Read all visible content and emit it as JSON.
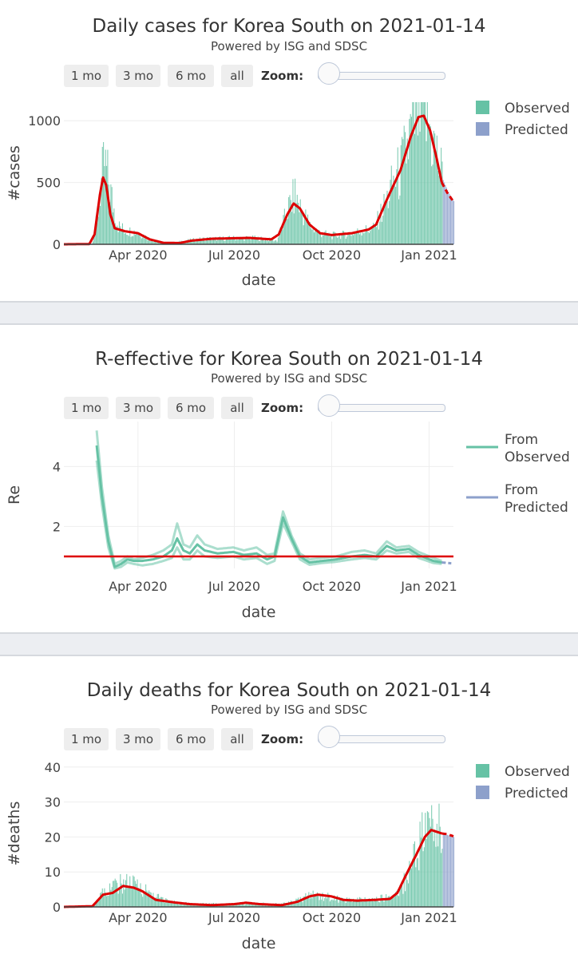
{
  "range_buttons": [
    "1 mo",
    "3 mo",
    "6 mo",
    "all"
  ],
  "zoom_label": "Zoom:",
  "colors": {
    "observed": "#66c2a5",
    "predicted": "#8da0cb",
    "fit": "#dd0000",
    "grid": "#eeeeee"
  },
  "charts": [
    {
      "title": "Daily cases for Korea South on 2021-01-14",
      "subtitle": "Powered by ISG and SDSC",
      "ylabel": "#cases",
      "xlabel": "date",
      "legend": [
        "Observed",
        "Predicted"
      ]
    },
    {
      "title": "R-effective for Korea South on 2021-01-14",
      "subtitle": "Powered by ISG and SDSC",
      "ylabel": "Re",
      "xlabel": "date",
      "legend": [
        "From\nObserved",
        "From\nPredicted"
      ]
    },
    {
      "title": "Daily deaths for Korea South on 2021-01-14",
      "subtitle": "Powered by ISG and SDSC",
      "ylabel": "#deaths",
      "xlabel": "date",
      "legend": [
        "Observed",
        "Predicted"
      ]
    }
  ],
  "chart_data": [
    {
      "type": "bar",
      "title": "Daily cases for Korea South on 2021-01-14",
      "x_range": [
        "2020-01-22",
        "2021-01-24"
      ],
      "ylim": [
        0,
        1150
      ],
      "yticks": [
        0,
        500,
        1000
      ],
      "xticks": [
        {
          "date": "2020-04-01",
          "label": "Apr 2020"
        },
        {
          "date": "2020-07-01",
          "label": "Jul 2020"
        },
        {
          "date": "2020-10-01",
          "label": "Oct 2020"
        },
        {
          "date": "2021-01-01",
          "label": "Jan 2021"
        }
      ],
      "observed_end": "2021-01-13",
      "prediction_end": "2021-01-24",
      "observed_keypoints": [
        [
          "2020-01-22",
          0
        ],
        [
          "2020-02-17",
          1
        ],
        [
          "2020-02-22",
          200
        ],
        [
          "2020-02-26",
          500
        ],
        [
          "2020-02-29",
          650
        ],
        [
          "2020-03-03",
          550
        ],
        [
          "2020-03-08",
          320
        ],
        [
          "2020-03-13",
          150
        ],
        [
          "2020-03-20",
          110
        ],
        [
          "2020-04-01",
          100
        ],
        [
          "2020-04-10",
          50
        ],
        [
          "2020-04-20",
          15
        ],
        [
          "2020-05-05",
          8
        ],
        [
          "2020-05-12",
          25
        ],
        [
          "2020-05-28",
          40
        ],
        [
          "2020-06-05",
          45
        ],
        [
          "2020-06-15",
          45
        ],
        [
          "2020-07-01",
          50
        ],
        [
          "2020-07-20",
          50
        ],
        [
          "2020-08-01",
          40
        ],
        [
          "2020-08-10",
          30
        ],
        [
          "2020-08-15",
          150
        ],
        [
          "2020-08-20",
          280
        ],
        [
          "2020-08-27",
          400
        ],
        [
          "2020-09-01",
          300
        ],
        [
          "2020-09-10",
          150
        ],
        [
          "2020-09-20",
          90
        ],
        [
          "2020-10-01",
          70
        ],
        [
          "2020-10-15",
          80
        ],
        [
          "2020-10-30",
          110
        ],
        [
          "2020-11-10",
          130
        ],
        [
          "2020-11-20",
          320
        ],
        [
          "2020-11-28",
          500
        ],
        [
          "2020-12-05",
          600
        ],
        [
          "2020-12-13",
          850
        ],
        [
          "2020-12-20",
          1050
        ],
        [
          "2020-12-25",
          1100
        ],
        [
          "2021-01-01",
          950
        ],
        [
          "2021-01-08",
          700
        ],
        [
          "2021-01-13",
          550
        ]
      ],
      "predicted_keypoints": [
        [
          "2021-01-14",
          520
        ],
        [
          "2021-01-19",
          420
        ],
        [
          "2021-01-24",
          350
        ]
      ],
      "fit_keypoints": [
        [
          "2020-01-22",
          0
        ],
        [
          "2020-02-15",
          2
        ],
        [
          "2020-02-20",
          80
        ],
        [
          "2020-02-25",
          400
        ],
        [
          "2020-02-28",
          540
        ],
        [
          "2020-03-02",
          480
        ],
        [
          "2020-03-06",
          240
        ],
        [
          "2020-03-10",
          130
        ],
        [
          "2020-03-20",
          105
        ],
        [
          "2020-04-01",
          90
        ],
        [
          "2020-04-12",
          40
        ],
        [
          "2020-04-25",
          12
        ],
        [
          "2020-05-10",
          10
        ],
        [
          "2020-05-22",
          30
        ],
        [
          "2020-06-10",
          45
        ],
        [
          "2020-07-15",
          52
        ],
        [
          "2020-08-05",
          40
        ],
        [
          "2020-08-12",
          80
        ],
        [
          "2020-08-20",
          240
        ],
        [
          "2020-08-26",
          330
        ],
        [
          "2020-09-01",
          290
        ],
        [
          "2020-09-10",
          160
        ],
        [
          "2020-09-20",
          90
        ],
        [
          "2020-10-01",
          75
        ],
        [
          "2020-10-20",
          90
        ],
        [
          "2020-11-05",
          120
        ],
        [
          "2020-11-12",
          160
        ],
        [
          "2020-11-22",
          360
        ],
        [
          "2020-12-05",
          600
        ],
        [
          "2020-12-15",
          880
        ],
        [
          "2020-12-22",
          1030
        ],
        [
          "2020-12-27",
          1040
        ],
        [
          "2021-01-02",
          920
        ],
        [
          "2021-01-08",
          700
        ],
        [
          "2021-01-13",
          500
        ]
      ],
      "fit_predicted_keypoints": [
        [
          "2021-01-13",
          500
        ],
        [
          "2021-01-18",
          420
        ],
        [
          "2021-01-24",
          345
        ]
      ]
    },
    {
      "type": "line",
      "title": "R-effective for Korea South on 2021-01-14",
      "x_range": [
        "2020-01-22",
        "2021-01-24"
      ],
      "ylim": [
        0.6,
        5.5
      ],
      "yticks": [
        2,
        4
      ],
      "xticks": [
        {
          "date": "2020-04-01",
          "label": "Apr 2020"
        },
        {
          "date": "2020-07-01",
          "label": "Jul 2020"
        },
        {
          "date": "2020-10-01",
          "label": "Oct 2020"
        },
        {
          "date": "2021-01-01",
          "label": "Jan 2021"
        }
      ],
      "reference_line": 1,
      "observed_median": [
        [
          "2020-02-22",
          4.7
        ],
        [
          "2020-02-27",
          3.0
        ],
        [
          "2020-03-04",
          1.5
        ],
        [
          "2020-03-10",
          0.65
        ],
        [
          "2020-03-16",
          0.75
        ],
        [
          "2020-03-22",
          0.9
        ],
        [
          "2020-03-28",
          0.85
        ],
        [
          "2020-04-05",
          0.85
        ],
        [
          "2020-04-15",
          0.9
        ],
        [
          "2020-04-25",
          1.0
        ],
        [
          "2020-05-03",
          1.2
        ],
        [
          "2020-05-08",
          1.6
        ],
        [
          "2020-05-14",
          1.2
        ],
        [
          "2020-05-20",
          1.1
        ],
        [
          "2020-05-27",
          1.4
        ],
        [
          "2020-06-03",
          1.2
        ],
        [
          "2020-06-15",
          1.1
        ],
        [
          "2020-06-30",
          1.15
        ],
        [
          "2020-07-10",
          1.05
        ],
        [
          "2020-07-22",
          1.1
        ],
        [
          "2020-08-01",
          0.9
        ],
        [
          "2020-08-08",
          1.0
        ],
        [
          "2020-08-16",
          2.3
        ],
        [
          "2020-08-24",
          1.6
        ],
        [
          "2020-09-01",
          1.0
        ],
        [
          "2020-09-10",
          0.8
        ],
        [
          "2020-09-22",
          0.85
        ],
        [
          "2020-10-05",
          0.9
        ],
        [
          "2020-10-20",
          1.0
        ],
        [
          "2020-11-01",
          1.05
        ],
        [
          "2020-11-12",
          1.0
        ],
        [
          "2020-11-22",
          1.35
        ],
        [
          "2020-12-01",
          1.2
        ],
        [
          "2020-12-13",
          1.25
        ],
        [
          "2020-12-22",
          1.05
        ],
        [
          "2021-01-05",
          0.85
        ],
        [
          "2021-01-13",
          0.8
        ]
      ],
      "observed_upper": [
        [
          "2020-02-22",
          5.2
        ],
        [
          "2020-02-27",
          3.3
        ],
        [
          "2020-03-04",
          1.7
        ],
        [
          "2020-03-10",
          0.75
        ],
        [
          "2020-03-16",
          0.85
        ],
        [
          "2020-03-22",
          1.0
        ],
        [
          "2020-03-28",
          0.9
        ],
        [
          "2020-04-05",
          0.95
        ],
        [
          "2020-04-15",
          1.05
        ],
        [
          "2020-04-25",
          1.2
        ],
        [
          "2020-05-03",
          1.4
        ],
        [
          "2020-05-08",
          2.1
        ],
        [
          "2020-05-14",
          1.4
        ],
        [
          "2020-05-20",
          1.3
        ],
        [
          "2020-05-27",
          1.7
        ],
        [
          "2020-06-03",
          1.4
        ],
        [
          "2020-06-15",
          1.25
        ],
        [
          "2020-06-30",
          1.3
        ],
        [
          "2020-07-10",
          1.2
        ],
        [
          "2020-07-22",
          1.3
        ],
        [
          "2020-08-01",
          1.05
        ],
        [
          "2020-08-08",
          1.1
        ],
        [
          "2020-08-16",
          2.5
        ],
        [
          "2020-08-24",
          1.7
        ],
        [
          "2020-09-01",
          1.1
        ],
        [
          "2020-09-10",
          0.9
        ],
        [
          "2020-09-22",
          0.95
        ],
        [
          "2020-10-05",
          1.0
        ],
        [
          "2020-10-20",
          1.15
        ],
        [
          "2020-11-01",
          1.2
        ],
        [
          "2020-11-12",
          1.1
        ],
        [
          "2020-11-22",
          1.5
        ],
        [
          "2020-12-01",
          1.3
        ],
        [
          "2020-12-13",
          1.35
        ],
        [
          "2020-12-22",
          1.15
        ],
        [
          "2021-01-05",
          0.95
        ],
        [
          "2021-01-13",
          0.85
        ]
      ],
      "observed_lower": [
        [
          "2020-02-22",
          4.2
        ],
        [
          "2020-02-27",
          2.7
        ],
        [
          "2020-03-04",
          1.3
        ],
        [
          "2020-03-10",
          0.6
        ],
        [
          "2020-03-16",
          0.65
        ],
        [
          "2020-03-22",
          0.8
        ],
        [
          "2020-03-28",
          0.75
        ],
        [
          "2020-04-05",
          0.7
        ],
        [
          "2020-04-15",
          0.75
        ],
        [
          "2020-04-25",
          0.85
        ],
        [
          "2020-05-03",
          0.95
        ],
        [
          "2020-05-08",
          1.3
        ],
        [
          "2020-05-14",
          0.9
        ],
        [
          "2020-05-20",
          0.9
        ],
        [
          "2020-05-27",
          1.2
        ],
        [
          "2020-06-03",
          1.0
        ],
        [
          "2020-06-15",
          0.95
        ],
        [
          "2020-06-30",
          1.0
        ],
        [
          "2020-07-10",
          0.9
        ],
        [
          "2020-07-22",
          0.95
        ],
        [
          "2020-08-01",
          0.75
        ],
        [
          "2020-08-08",
          0.85
        ],
        [
          "2020-08-16",
          2.1
        ],
        [
          "2020-08-24",
          1.5
        ],
        [
          "2020-09-01",
          0.9
        ],
        [
          "2020-09-10",
          0.72
        ],
        [
          "2020-09-22",
          0.78
        ],
        [
          "2020-10-05",
          0.82
        ],
        [
          "2020-10-20",
          0.9
        ],
        [
          "2020-11-01",
          0.95
        ],
        [
          "2020-11-12",
          0.9
        ],
        [
          "2020-11-22",
          1.2
        ],
        [
          "2020-12-01",
          1.1
        ],
        [
          "2020-12-13",
          1.15
        ],
        [
          "2020-12-22",
          0.95
        ],
        [
          "2021-01-05",
          0.78
        ],
        [
          "2021-01-13",
          0.75
        ]
      ],
      "predicted_median": [
        [
          "2021-01-13",
          0.8
        ],
        [
          "2021-01-18",
          0.78
        ],
        [
          "2021-01-22",
          0.77
        ]
      ]
    },
    {
      "type": "bar",
      "title": "Daily deaths for Korea South on 2021-01-14",
      "x_range": [
        "2020-01-22",
        "2021-01-24"
      ],
      "ylim": [
        0,
        42
      ],
      "yticks": [
        0,
        10,
        20,
        30,
        40
      ],
      "xticks": [
        {
          "date": "2020-04-01",
          "label": "Apr 2020"
        },
        {
          "date": "2020-07-01",
          "label": "Jul 2020"
        },
        {
          "date": "2020-10-01",
          "label": "Oct 2020"
        },
        {
          "date": "2021-01-01",
          "label": "Jan 2021"
        }
      ],
      "observed_end": "2021-01-13",
      "prediction_end": "2021-01-24",
      "observed_keypoints": [
        [
          "2020-01-22",
          0
        ],
        [
          "2020-02-18",
          0
        ],
        [
          "2020-02-22",
          2
        ],
        [
          "2020-03-01",
          5
        ],
        [
          "2020-03-10",
          6
        ],
        [
          "2020-03-20",
          7
        ],
        [
          "2020-04-01",
          6
        ],
        [
          "2020-04-12",
          4
        ],
        [
          "2020-04-25",
          2
        ],
        [
          "2020-05-10",
          1
        ],
        [
          "2020-06-01",
          1
        ],
        [
          "2020-07-01",
          0.8
        ],
        [
          "2020-07-15",
          1
        ],
        [
          "2020-08-10",
          0.8
        ],
        [
          "2020-08-20",
          1
        ],
        [
          "2020-09-01",
          2
        ],
        [
          "2020-09-10",
          3.5
        ],
        [
          "2020-09-25",
          3
        ],
        [
          "2020-10-10",
          2
        ],
        [
          "2020-10-25",
          2
        ],
        [
          "2020-11-10",
          2
        ],
        [
          "2020-11-25",
          3
        ],
        [
          "2020-12-05",
          5
        ],
        [
          "2020-12-12",
          10
        ],
        [
          "2020-12-20",
          17
        ],
        [
          "2020-12-28",
          22
        ],
        [
          "2021-01-05",
          23
        ],
        [
          "2021-01-13",
          20
        ]
      ],
      "predicted_keypoints": [
        [
          "2021-01-14",
          21
        ],
        [
          "2021-01-19",
          20.5
        ],
        [
          "2021-01-24",
          20
        ]
      ],
      "fit_keypoints": [
        [
          "2020-01-22",
          0
        ],
        [
          "2020-02-18",
          0.2
        ],
        [
          "2020-02-28",
          3.5
        ],
        [
          "2020-03-08",
          4
        ],
        [
          "2020-03-18",
          6
        ],
        [
          "2020-03-28",
          5.5
        ],
        [
          "2020-04-05",
          4.5
        ],
        [
          "2020-04-18",
          2
        ],
        [
          "2020-05-05",
          1.3
        ],
        [
          "2020-05-20",
          0.8
        ],
        [
          "2020-06-10",
          0.5
        ],
        [
          "2020-07-01",
          0.8
        ],
        [
          "2020-07-12",
          1.2
        ],
        [
          "2020-07-25",
          0.8
        ],
        [
          "2020-08-15",
          0.5
        ],
        [
          "2020-08-30",
          1.5
        ],
        [
          "2020-09-10",
          3
        ],
        [
          "2020-09-18",
          3.5
        ],
        [
          "2020-10-01",
          3
        ],
        [
          "2020-10-12",
          2
        ],
        [
          "2020-10-25",
          1.8
        ],
        [
          "2020-11-10",
          2
        ],
        [
          "2020-11-25",
          2.3
        ],
        [
          "2020-12-02",
          4
        ],
        [
          "2020-12-10",
          9
        ],
        [
          "2020-12-20",
          15
        ],
        [
          "2020-12-28",
          20
        ],
        [
          "2021-01-03",
          22
        ],
        [
          "2021-01-08",
          21.5
        ],
        [
          "2021-01-13",
          21
        ]
      ],
      "fit_predicted_keypoints": [
        [
          "2021-01-13",
          21
        ],
        [
          "2021-01-18",
          20.8
        ],
        [
          "2021-01-24",
          20.2
        ]
      ]
    }
  ]
}
